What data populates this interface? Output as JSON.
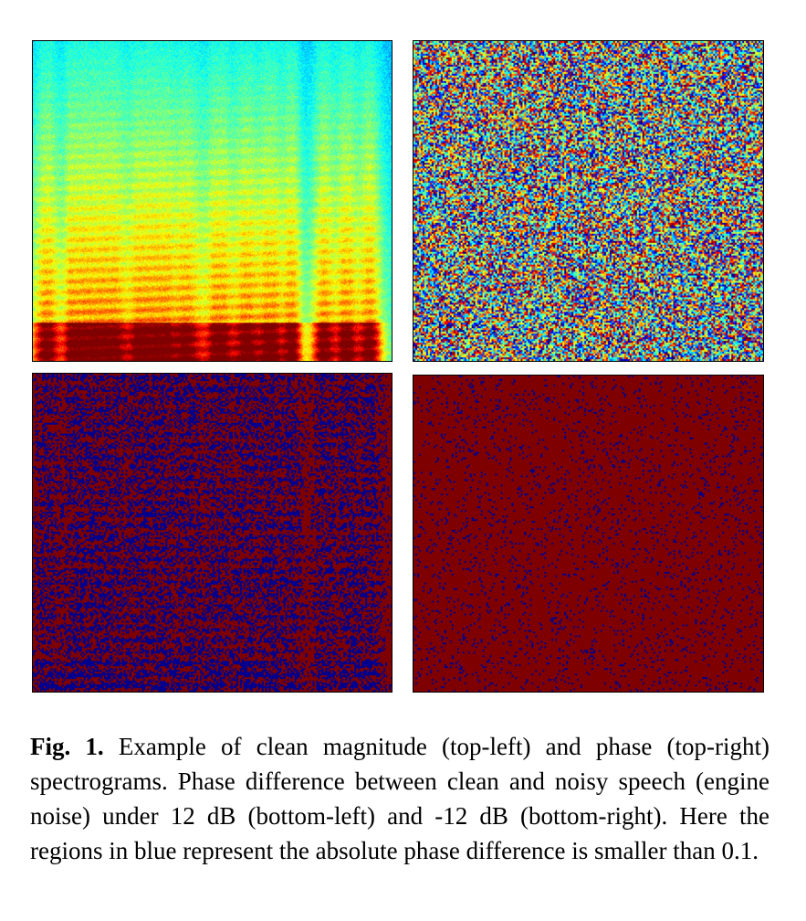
{
  "figure": {
    "panels": [
      {
        "id": "top-left",
        "content": "clean magnitude spectrogram",
        "colormap": "jet"
      },
      {
        "id": "top-right",
        "content": "phase spectrogram",
        "colormap": "jet"
      },
      {
        "id": "bottom-left",
        "content": "phase difference 12 dB",
        "colors": [
          "#7f0000",
          "#00008f"
        ]
      },
      {
        "id": "bottom-right",
        "content": "phase difference -12 dB",
        "colors": [
          "#7f0000",
          "#00008f"
        ]
      }
    ]
  },
  "caption": {
    "label": "Fig. 1.",
    "text": "Example of clean magnitude (top-left) and phase (top-right) spectrograms. Phase difference between clean and noisy speech (engine noise) under 12 dB (bottom-left) and -12 dB (bottom-right). Here the regions in blue represent the absolute phase difference is smaller than 0.1."
  }
}
